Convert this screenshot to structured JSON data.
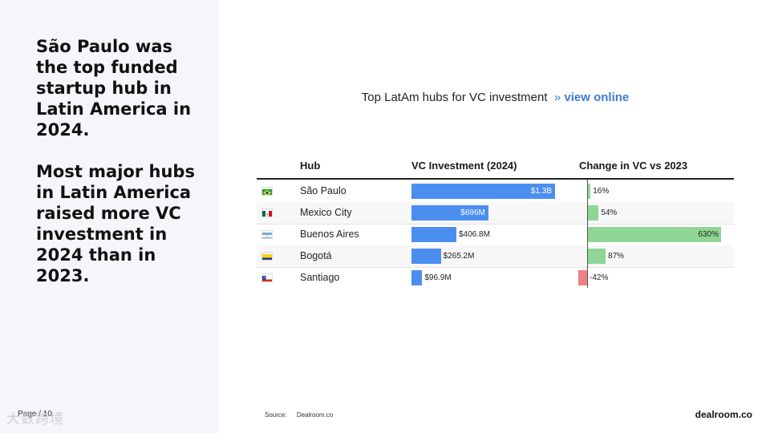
{
  "headline_1": "São Paulo was the top funded startup hub in Latin America in 2024.",
  "headline_2": "Most major hubs in Latin America raised more VC investment in 2024 than in 2023.",
  "page_number": "Page / 10",
  "watermark": "大数跨境",
  "chart_title": "Top LatAm hubs for VC investment",
  "chart_link_sep": "»",
  "chart_link": "view online",
  "source_label": "Source:",
  "source_value": "Dealroom.co",
  "brand": "dealroom.co",
  "colors": {
    "investment": "#4a8ff0",
    "positive": "#8fd694",
    "negative": "#f08080"
  },
  "chart_data": {
    "type": "table",
    "title": "Top LatAm hubs for VC investment",
    "columns": [
      "Hub",
      "VC Investment (2024)",
      "Change in VC vs 2023"
    ],
    "rows": [
      {
        "flag": "brazil-flag-icon",
        "hub": "São Paulo",
        "investment": 1300,
        "investment_label": "$1.3B",
        "change": 16,
        "change_label": "16%"
      },
      {
        "flag": "mexico-flag-icon",
        "hub": "Mexico City",
        "investment": 696,
        "investment_label": "$696M",
        "change": 54,
        "change_label": "54%"
      },
      {
        "flag": "argentina-flag-icon",
        "hub": "Buenos Aires",
        "investment": 406.8,
        "investment_label": "$406.8M",
        "change": 630,
        "change_label": "630%"
      },
      {
        "flag": "colombia-flag-icon",
        "hub": "Bogotá",
        "investment": 265.2,
        "investment_label": "$265.2M",
        "change": 87,
        "change_label": "87%"
      },
      {
        "flag": "chile-flag-icon",
        "hub": "Santiago",
        "investment": 96.9,
        "investment_label": "$96.9M",
        "change": -42,
        "change_label": "-42%"
      }
    ]
  }
}
